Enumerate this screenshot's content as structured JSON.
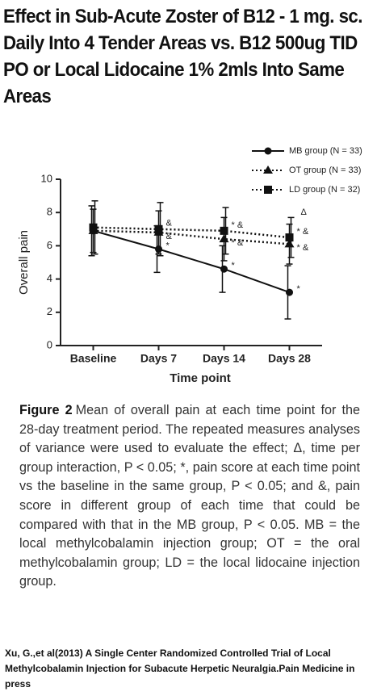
{
  "title": "Effect in Sub-Acute Zoster of B12 - 1 mg. sc. Daily Into 4 Tender Areas vs. B12 500ug TID PO or Local Lidocaine 1% 2mls Into Same Areas",
  "chart_data": {
    "type": "line",
    "x_label": "Time point",
    "y_label": "Overall pain",
    "categories": [
      "Baseline",
      "Days 7",
      "Days 14",
      "Days 28"
    ],
    "ylim": [
      0,
      10
    ],
    "yticks": [
      0,
      2,
      4,
      6,
      8,
      10
    ],
    "series": [
      {
        "name": "MB group (N = 33)",
        "color": "#111111",
        "marker": "circle",
        "line_style": "solid",
        "values": [
          6.9,
          5.8,
          4.6,
          3.2
        ],
        "errors": [
          1.5,
          1.4,
          1.4,
          1.6
        ],
        "point_labels": [
          null,
          "*",
          "*",
          "*"
        ]
      },
      {
        "name": "OT group (N = 33)",
        "color": "#111111",
        "marker": "triangle",
        "line_style": "dotted",
        "values": [
          6.9,
          6.8,
          6.4,
          6.1
        ],
        "errors": [
          1.3,
          1.3,
          1.3,
          1.2
        ],
        "point_labels": [
          null,
          "&",
          "* &",
          "* &"
        ]
      },
      {
        "name": "LD group (N = 32)",
        "color": "#111111",
        "marker": "square",
        "line_style": "dotted",
        "values": [
          7.1,
          7.0,
          6.9,
          6.5
        ],
        "errors": [
          1.6,
          1.6,
          1.4,
          1.2
        ],
        "point_labels": [
          null,
          "&",
          "* &",
          "* &"
        ]
      }
    ],
    "annotations": [
      "Δ"
    ]
  },
  "caption": {
    "label": "Figure 2",
    "text": "Mean of overall pain at each time point for the 28-day treatment period. The repeated measures analyses of variance were used to evaluate the effect; Δ, time per group interaction, P < 0.05; *, pain score at each time point vs the baseline in the same group, P < 0.05; and &, pain score in different group of each time that could be compared with that in the MB group, P < 0.05. MB = the local methylcobalamin injection group; OT = the oral methylcobalamin group; LD = the local lidocaine injection group."
  },
  "citation": "Xu, G.,et al(2013) A Single Center Randomized Controlled Trial of Local Methylcobalamin Injection for Subacute Herpetic Neuralgia.Pain Medicine in press"
}
